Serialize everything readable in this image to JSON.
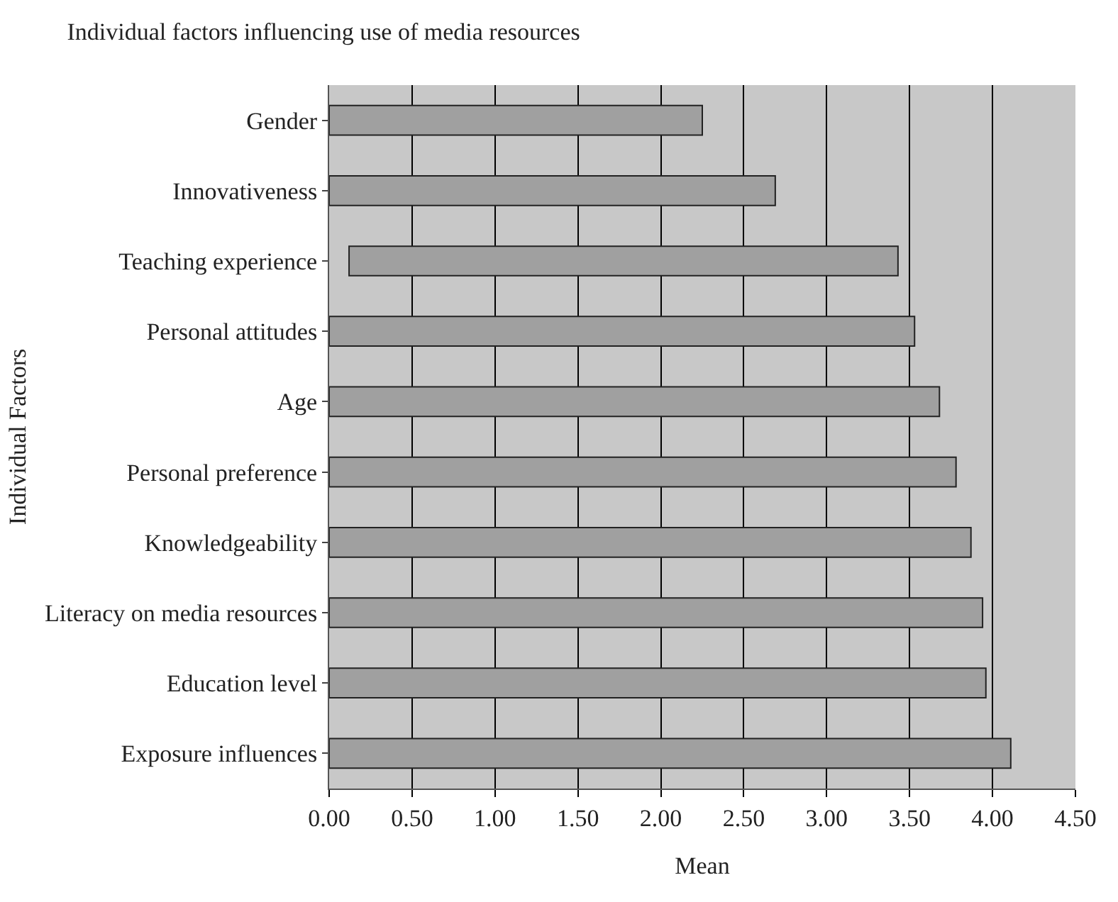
{
  "chart_data": {
    "type": "bar",
    "orientation": "horizontal",
    "title": "Individual factors influencing use of media resources",
    "xlabel": "Mean",
    "ylabel": "Individual Factors",
    "categories": [
      "Gender",
      "Innovativeness",
      "Teaching experience",
      "Personal attitudes",
      "Age",
      "Personal preference",
      "Knowledgeability",
      "Literacy on media resources",
      "Education level",
      "Exposure influences"
    ],
    "values": [
      2.25,
      2.69,
      3.31,
      3.53,
      3.68,
      3.78,
      3.87,
      3.94,
      3.96,
      4.11
    ],
    "base": [
      0,
      0,
      0.12,
      0,
      0,
      0,
      0,
      0,
      0,
      0
    ],
    "color": "#a0a0a0",
    "xlim": [
      0,
      4.5
    ],
    "xticks": [
      {
        "value": 0,
        "label": "0.00"
      },
      {
        "value": 0.5,
        "label": "0.50"
      },
      {
        "value": 1,
        "label": "1.00"
      },
      {
        "value": 1.5,
        "label": "1.50"
      },
      {
        "value": 2,
        "label": "2.00"
      },
      {
        "value": 2.5,
        "label": "2.50"
      },
      {
        "value": 3,
        "label": "3.00"
      },
      {
        "value": 3.5,
        "label": "3.50"
      },
      {
        "value": 4,
        "label": "4.00"
      },
      {
        "value": 4.5,
        "label": "4.50"
      }
    ],
    "grid": "x"
  }
}
